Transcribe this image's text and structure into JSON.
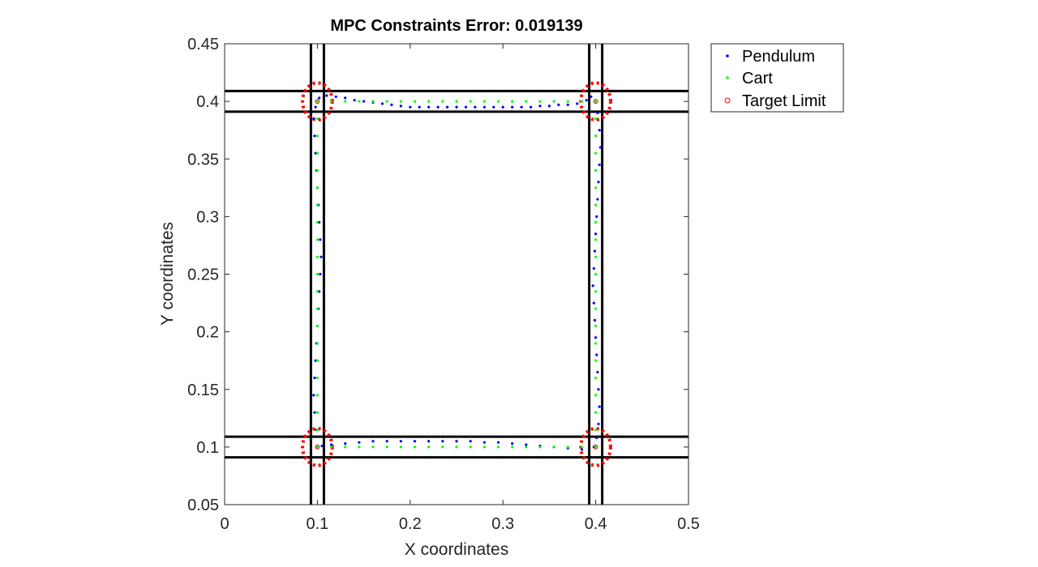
{
  "chart_data": {
    "type": "scatter",
    "title": "MPC Constraints Error: 0.019139",
    "xlabel": "X coordinates",
    "ylabel": "Y coordinates",
    "xlim": [
      0,
      0.5
    ],
    "ylim": [
      0.05,
      0.45
    ],
    "xticks": [
      0,
      0.1,
      0.2,
      0.3,
      0.4,
      0.5
    ],
    "xtick_labels": [
      "0",
      "0.1",
      "0.2",
      "0.3",
      "0.4",
      "0.5"
    ],
    "yticks": [
      0.05,
      0.1,
      0.15,
      0.2,
      0.25,
      0.3,
      0.35,
      0.4,
      0.45
    ],
    "ytick_labels": [
      "0.05",
      "0.1",
      "0.15",
      "0.2",
      "0.25",
      "0.3",
      "0.35",
      "0.4",
      "0.45"
    ],
    "grid": false,
    "legend_position": "outside-top-right",
    "colors": {
      "pendulum": "#0000ff",
      "cart": "#00ff00",
      "target": "#ff0000",
      "constraint": "#000000"
    },
    "legend": [
      {
        "label": "Pendulum",
        "marker": "dot",
        "color": "#0000ff"
      },
      {
        "label": "Cart",
        "marker": "dot",
        "color": "#00ff00"
      },
      {
        "label": "Target Limit",
        "marker": "circle",
        "color": "#ff0000"
      }
    ],
    "constraint_lines": {
      "vertical_x": [
        0.093,
        0.107,
        0.393,
        0.407
      ],
      "horizontal_y": [
        0.091,
        0.109,
        0.391,
        0.409
      ]
    },
    "target_limits": [
      {
        "x": 0.1,
        "y": 0.1,
        "radius": 0.016
      },
      {
        "x": 0.1,
        "y": 0.4,
        "radius": 0.016
      },
      {
        "x": 0.4,
        "y": 0.4,
        "radius": 0.016
      },
      {
        "x": 0.4,
        "y": 0.1,
        "radius": 0.016
      }
    ],
    "series": [
      {
        "name": "Pendulum",
        "points": [
          [
            0.1,
            0.1
          ],
          [
            0.099,
            0.115
          ],
          [
            0.097,
            0.13
          ],
          [
            0.096,
            0.145
          ],
          [
            0.097,
            0.16
          ],
          [
            0.098,
            0.175
          ],
          [
            0.099,
            0.19
          ],
          [
            0.1,
            0.205
          ],
          [
            0.101,
            0.22
          ],
          [
            0.102,
            0.235
          ],
          [
            0.103,
            0.25
          ],
          [
            0.104,
            0.265
          ],
          [
            0.103,
            0.28
          ],
          [
            0.102,
            0.295
          ],
          [
            0.101,
            0.31
          ],
          [
            0.1,
            0.325
          ],
          [
            0.099,
            0.34
          ],
          [
            0.098,
            0.355
          ],
          [
            0.097,
            0.37
          ],
          [
            0.096,
            0.385
          ],
          [
            0.098,
            0.395
          ],
          [
            0.102,
            0.403
          ],
          [
            0.11,
            0.405
          ],
          [
            0.12,
            0.404
          ],
          [
            0.13,
            0.403
          ],
          [
            0.14,
            0.401
          ],
          [
            0.15,
            0.4
          ],
          [
            0.16,
            0.399
          ],
          [
            0.17,
            0.398
          ],
          [
            0.18,
            0.397
          ],
          [
            0.19,
            0.396
          ],
          [
            0.2,
            0.395
          ],
          [
            0.21,
            0.395
          ],
          [
            0.22,
            0.395
          ],
          [
            0.23,
            0.395
          ],
          [
            0.24,
            0.395
          ],
          [
            0.25,
            0.395
          ],
          [
            0.26,
            0.395
          ],
          [
            0.27,
            0.395
          ],
          [
            0.28,
            0.395
          ],
          [
            0.29,
            0.395
          ],
          [
            0.3,
            0.395
          ],
          [
            0.31,
            0.395
          ],
          [
            0.32,
            0.395
          ],
          [
            0.33,
            0.395
          ],
          [
            0.34,
            0.396
          ],
          [
            0.35,
            0.396
          ],
          [
            0.36,
            0.397
          ],
          [
            0.37,
            0.397
          ],
          [
            0.38,
            0.398
          ],
          [
            0.39,
            0.401
          ],
          [
            0.395,
            0.404
          ],
          [
            0.402,
            0.39
          ],
          [
            0.404,
            0.375
          ],
          [
            0.405,
            0.36
          ],
          [
            0.404,
            0.345
          ],
          [
            0.403,
            0.33
          ],
          [
            0.402,
            0.315
          ],
          [
            0.401,
            0.3
          ],
          [
            0.4,
            0.285
          ],
          [
            0.399,
            0.27
          ],
          [
            0.398,
            0.255
          ],
          [
            0.397,
            0.24
          ],
          [
            0.398,
            0.225
          ],
          [
            0.399,
            0.21
          ],
          [
            0.4,
            0.195
          ],
          [
            0.401,
            0.18
          ],
          [
            0.402,
            0.165
          ],
          [
            0.403,
            0.15
          ],
          [
            0.404,
            0.135
          ],
          [
            0.403,
            0.12
          ],
          [
            0.401,
            0.108
          ],
          [
            0.398,
            0.1
          ],
          [
            0.385,
            0.098
          ],
          [
            0.37,
            0.099
          ],
          [
            0.355,
            0.1
          ],
          [
            0.34,
            0.101
          ],
          [
            0.325,
            0.102
          ],
          [
            0.31,
            0.103
          ],
          [
            0.295,
            0.104
          ],
          [
            0.28,
            0.104
          ],
          [
            0.265,
            0.105
          ],
          [
            0.25,
            0.105
          ],
          [
            0.235,
            0.105
          ],
          [
            0.22,
            0.105
          ],
          [
            0.205,
            0.105
          ],
          [
            0.19,
            0.105
          ],
          [
            0.175,
            0.105
          ],
          [
            0.16,
            0.105
          ],
          [
            0.145,
            0.104
          ],
          [
            0.13,
            0.103
          ],
          [
            0.115,
            0.102
          ],
          [
            0.105,
            0.101
          ]
        ]
      },
      {
        "name": "Cart",
        "points": [
          [
            0.1,
            0.1
          ],
          [
            0.1,
            0.115
          ],
          [
            0.1,
            0.13
          ],
          [
            0.1,
            0.145
          ],
          [
            0.1,
            0.16
          ],
          [
            0.1,
            0.175
          ],
          [
            0.1,
            0.19
          ],
          [
            0.1,
            0.205
          ],
          [
            0.1,
            0.22
          ],
          [
            0.1,
            0.235
          ],
          [
            0.1,
            0.25
          ],
          [
            0.1,
            0.265
          ],
          [
            0.1,
            0.28
          ],
          [
            0.1,
            0.295
          ],
          [
            0.1,
            0.31
          ],
          [
            0.1,
            0.325
          ],
          [
            0.1,
            0.34
          ],
          [
            0.1,
            0.355
          ],
          [
            0.1,
            0.37
          ],
          [
            0.1,
            0.385
          ],
          [
            0.1,
            0.4
          ],
          [
            0.115,
            0.4
          ],
          [
            0.13,
            0.4
          ],
          [
            0.145,
            0.4
          ],
          [
            0.16,
            0.4
          ],
          [
            0.175,
            0.4
          ],
          [
            0.19,
            0.4
          ],
          [
            0.205,
            0.4
          ],
          [
            0.22,
            0.4
          ],
          [
            0.235,
            0.4
          ],
          [
            0.25,
            0.4
          ],
          [
            0.265,
            0.4
          ],
          [
            0.28,
            0.4
          ],
          [
            0.295,
            0.4
          ],
          [
            0.31,
            0.4
          ],
          [
            0.325,
            0.4
          ],
          [
            0.34,
            0.4
          ],
          [
            0.355,
            0.4
          ],
          [
            0.37,
            0.4
          ],
          [
            0.385,
            0.4
          ],
          [
            0.4,
            0.4
          ],
          [
            0.4,
            0.385
          ],
          [
            0.4,
            0.37
          ],
          [
            0.4,
            0.355
          ],
          [
            0.4,
            0.34
          ],
          [
            0.4,
            0.325
          ],
          [
            0.4,
            0.31
          ],
          [
            0.4,
            0.295
          ],
          [
            0.4,
            0.28
          ],
          [
            0.4,
            0.265
          ],
          [
            0.4,
            0.25
          ],
          [
            0.4,
            0.235
          ],
          [
            0.4,
            0.22
          ],
          [
            0.4,
            0.205
          ],
          [
            0.4,
            0.19
          ],
          [
            0.4,
            0.175
          ],
          [
            0.4,
            0.16
          ],
          [
            0.4,
            0.145
          ],
          [
            0.4,
            0.13
          ],
          [
            0.4,
            0.115
          ],
          [
            0.4,
            0.1
          ],
          [
            0.385,
            0.1
          ],
          [
            0.37,
            0.1
          ],
          [
            0.355,
            0.1
          ],
          [
            0.34,
            0.1
          ],
          [
            0.325,
            0.1
          ],
          [
            0.31,
            0.1
          ],
          [
            0.295,
            0.1
          ],
          [
            0.28,
            0.1
          ],
          [
            0.265,
            0.1
          ],
          [
            0.25,
            0.1
          ],
          [
            0.235,
            0.1
          ],
          [
            0.22,
            0.1
          ],
          [
            0.205,
            0.1
          ],
          [
            0.19,
            0.1
          ],
          [
            0.175,
            0.1
          ],
          [
            0.16,
            0.1
          ],
          [
            0.145,
            0.1
          ],
          [
            0.13,
            0.1
          ],
          [
            0.115,
            0.1
          ]
        ]
      }
    ]
  }
}
